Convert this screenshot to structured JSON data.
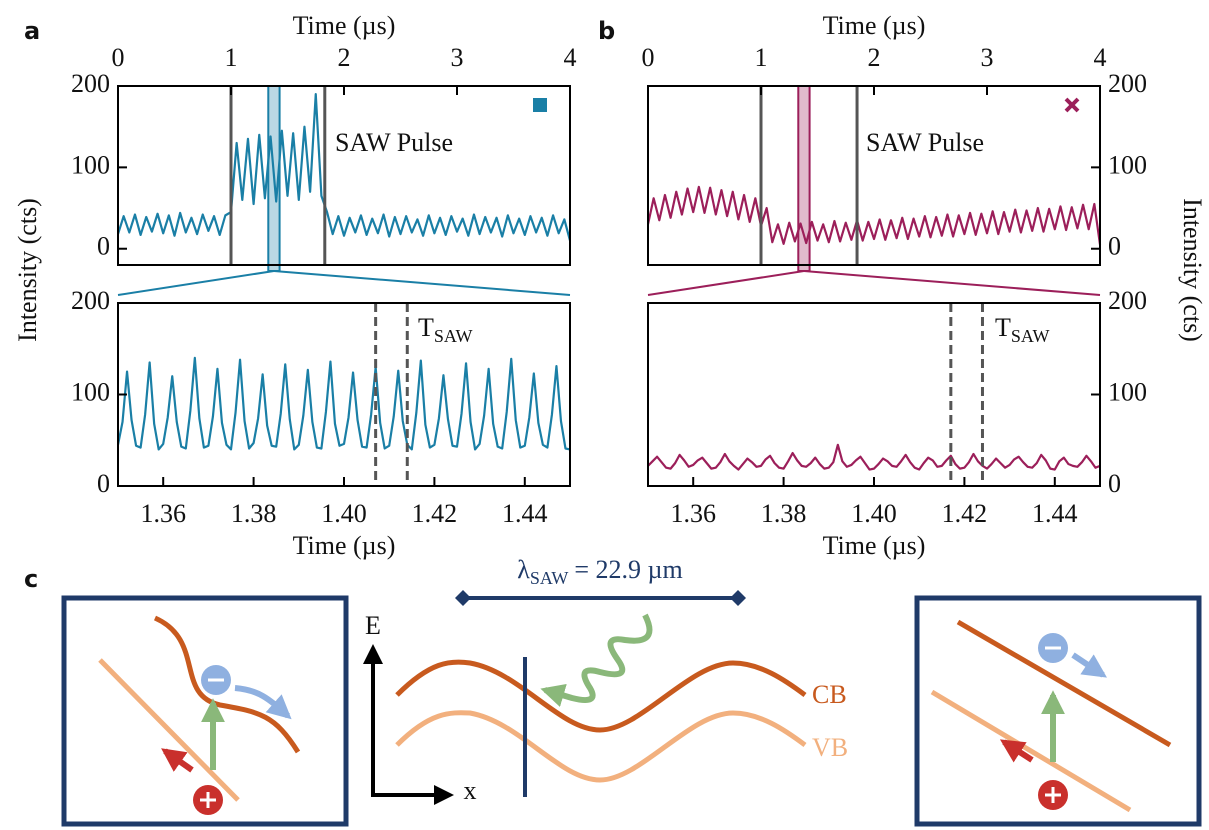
{
  "chart_data": [
    {
      "type": "line",
      "panel_label": "a",
      "xlabel": "Time (µs)",
      "ylabel": "Intensity (cts)",
      "xaxis": "top",
      "yaxis": "left",
      "x": [
        0,
        0.05,
        0.1,
        0.15,
        0.2,
        0.25,
        0.3,
        0.35,
        0.4,
        0.45,
        0.5,
        0.55,
        0.6,
        0.65,
        0.7,
        0.75,
        0.8,
        0.85,
        0.9,
        0.95,
        1,
        1.05,
        1.1,
        1.15,
        1.2,
        1.25,
        1.3,
        1.35,
        1.4,
        1.45,
        1.5,
        1.55,
        1.6,
        1.65,
        1.7,
        1.75,
        1.8,
        1.85,
        1.9,
        1.95,
        2,
        2.05,
        2.1,
        2.15,
        2.2,
        2.25,
        2.3,
        2.35,
        2.4,
        2.45,
        2.5,
        2.55,
        2.6,
        2.65,
        2.7,
        2.75,
        2.8,
        2.85,
        2.9,
        2.95,
        3,
        3.05,
        3.1,
        3.15,
        3.2,
        3.25,
        3.3,
        3.35,
        3.4,
        3.45,
        3.5,
        3.55,
        3.6,
        3.65,
        3.7,
        3.75,
        3.8,
        3.85,
        3.9,
        3.95,
        4
      ],
      "series": [
        {
          "color": "#1a7fa6",
          "values": [
            18,
            40,
            20,
            42,
            17,
            39,
            21,
            43,
            19,
            41,
            16,
            44,
            20,
            38,
            18,
            42,
            22,
            40,
            17,
            41,
            45,
            130,
            60,
            135,
            55,
            140,
            62,
            138,
            58,
            145,
            65,
            142,
            60,
            150,
            70,
            190,
            65,
            45,
            18,
            40,
            16,
            38,
            20,
            41,
            17,
            37,
            19,
            42,
            15,
            39,
            18,
            40,
            20,
            36,
            16,
            41,
            19,
            38,
            17,
            40,
            21,
            37,
            16,
            42,
            18,
            39,
            20,
            38,
            15,
            41,
            19,
            37,
            17,
            40,
            20,
            38,
            16,
            41,
            19,
            36,
            10
          ]
        }
      ],
      "xlim": [
        0,
        4
      ],
      "xticks": [
        0,
        1,
        2,
        3,
        4
      ],
      "ylim": [
        -20,
        200
      ],
      "yticks": [
        0,
        100,
        200
      ],
      "annotation": "SAW Pulse",
      "reference_lines": [
        1,
        1.83
      ],
      "highlight": [
        1.33,
        1.43
      ]
    },
    {
      "type": "line",
      "xlabel": "Time (µs)",
      "xaxis": "bottom",
      "yaxis": "left",
      "x": [
        1.35,
        1.351,
        1.352,
        1.353,
        1.354,
        1.355,
        1.356,
        1.357,
        1.358,
        1.359,
        1.36,
        1.361,
        1.362,
        1.363,
        1.364,
        1.365,
        1.366,
        1.367,
        1.368,
        1.369,
        1.37,
        1.371,
        1.372,
        1.373,
        1.374,
        1.375,
        1.376,
        1.377,
        1.378,
        1.379,
        1.38,
        1.381,
        1.382,
        1.383,
        1.384,
        1.385,
        1.386,
        1.387,
        1.388,
        1.389,
        1.39,
        1.391,
        1.392,
        1.393,
        1.394,
        1.395,
        1.396,
        1.397,
        1.398,
        1.399,
        1.4,
        1.401,
        1.402,
        1.403,
        1.404,
        1.405,
        1.406,
        1.407,
        1.408,
        1.409,
        1.41,
        1.411,
        1.412,
        1.413,
        1.414,
        1.415,
        1.416,
        1.417,
        1.418,
        1.419,
        1.42,
        1.421,
        1.422,
        1.423,
        1.424,
        1.425,
        1.426,
        1.427,
        1.428,
        1.429,
        1.43,
        1.431,
        1.432,
        1.433,
        1.434,
        1.435,
        1.436,
        1.437,
        1.438,
        1.439,
        1.44,
        1.441,
        1.442,
        1.443,
        1.444,
        1.445,
        1.446,
        1.447,
        1.448,
        1.449,
        1.45
      ],
      "series": [
        {
          "color": "#1a7fa6",
          "values": [
            45,
            70,
            125,
            72,
            44,
            42,
            78,
            135,
            68,
            40,
            46,
            75,
            120,
            70,
            43,
            41,
            82,
            140,
            74,
            42,
            44,
            76,
            128,
            69,
            45,
            40,
            80,
            138,
            71,
            41,
            47,
            74,
            122,
            66,
            44,
            43,
            79,
            133,
            73,
            40,
            45,
            77,
            127,
            70,
            42,
            41,
            81,
            136,
            68,
            44,
            46,
            75,
            124,
            72,
            43,
            42,
            78,
            130,
            69,
            41,
            44,
            76,
            126,
            71,
            45,
            40,
            80,
            137,
            67,
            42,
            45,
            74,
            121,
            73,
            44,
            43,
            79,
            134,
            70,
            40,
            46,
            77,
            128,
            68,
            43,
            41,
            81,
            139,
            72,
            42,
            44,
            75,
            123,
            69,
            45,
            42,
            78,
            131,
            71,
            41,
            40
          ]
        }
      ],
      "xlim": [
        1.35,
        1.45
      ],
      "xticks": [
        1.36,
        1.38,
        {
          "value": 1.4,
          "label": "1.40"
        },
        1.42,
        1.44
      ],
      "ylim": [
        0,
        200
      ],
      "yticks": [
        0,
        100,
        200
      ],
      "annotation": {
        "main": "T",
        "sub": "SAW"
      },
      "reference_lines": [
        1.407,
        1.414
      ]
    },
    {
      "type": "line",
      "panel_label": "b",
      "xlabel": "Time (µs)",
      "ylabel": "Intensity (cts)",
      "xaxis": "top",
      "yaxis": "right",
      "x": [
        0,
        0.05,
        0.1,
        0.15,
        0.2,
        0.25,
        0.3,
        0.35,
        0.4,
        0.45,
        0.5,
        0.55,
        0.6,
        0.65,
        0.7,
        0.75,
        0.8,
        0.85,
        0.9,
        0.95,
        1,
        1.05,
        1.1,
        1.15,
        1.2,
        1.25,
        1.3,
        1.35,
        1.4,
        1.45,
        1.5,
        1.55,
        1.6,
        1.65,
        1.7,
        1.75,
        1.8,
        1.85,
        1.9,
        1.95,
        2,
        2.05,
        2.1,
        2.15,
        2.2,
        2.25,
        2.3,
        2.35,
        2.4,
        2.45,
        2.5,
        2.55,
        2.6,
        2.65,
        2.7,
        2.75,
        2.8,
        2.85,
        2.9,
        2.95,
        3,
        3.05,
        3.1,
        3.15,
        3.2,
        3.25,
        3.3,
        3.35,
        3.4,
        3.45,
        3.5,
        3.55,
        3.6,
        3.65,
        3.7,
        3.75,
        3.8,
        3.85,
        3.9,
        3.95,
        4
      ],
      "series": [
        {
          "color": "#9c1f5a",
          "values": [
            30,
            62,
            35,
            66,
            38,
            70,
            42,
            74,
            45,
            76,
            44,
            75,
            42,
            72,
            40,
            70,
            36,
            66,
            33,
            62,
            28,
            50,
            8,
            30,
            6,
            32,
            9,
            31,
            7,
            33,
            10,
            30,
            8,
            34,
            9,
            32,
            11,
            35,
            10,
            33,
            12,
            36,
            11,
            35,
            13,
            38,
            12,
            37,
            15,
            40,
            14,
            39,
            16,
            42,
            15,
            41,
            18,
            44,
            17,
            43,
            19,
            46,
            18,
            45,
            21,
            48,
            20,
            47,
            22,
            50,
            21,
            49,
            24,
            52,
            23,
            51,
            25,
            54,
            24,
            55,
            5
          ]
        }
      ],
      "xlim": [
        0,
        4
      ],
      "xticks": [
        0,
        1,
        2,
        3,
        4
      ],
      "ylim": [
        -20,
        200
      ],
      "yticks": [
        0,
        100,
        200
      ],
      "annotation": "SAW Pulse",
      "reference_lines": [
        1,
        1.85
      ],
      "highlight": [
        1.33,
        1.43
      ]
    },
    {
      "type": "line",
      "xlabel": "Time (µs)",
      "xaxis": "bottom",
      "yaxis": "right",
      "x": [
        1.35,
        1.351,
        1.352,
        1.353,
        1.354,
        1.355,
        1.356,
        1.357,
        1.358,
        1.359,
        1.36,
        1.361,
        1.362,
        1.363,
        1.364,
        1.365,
        1.366,
        1.367,
        1.368,
        1.369,
        1.37,
        1.371,
        1.372,
        1.373,
        1.374,
        1.375,
        1.376,
        1.377,
        1.378,
        1.379,
        1.38,
        1.381,
        1.382,
        1.383,
        1.384,
        1.385,
        1.386,
        1.387,
        1.388,
        1.389,
        1.39,
        1.391,
        1.392,
        1.393,
        1.394,
        1.395,
        1.396,
        1.397,
        1.398,
        1.399,
        1.4,
        1.401,
        1.402,
        1.403,
        1.404,
        1.405,
        1.406,
        1.407,
        1.408,
        1.409,
        1.41,
        1.411,
        1.412,
        1.413,
        1.414,
        1.415,
        1.416,
        1.417,
        1.418,
        1.419,
        1.42,
        1.421,
        1.422,
        1.423,
        1.424,
        1.425,
        1.426,
        1.427,
        1.428,
        1.429,
        1.43,
        1.431,
        1.432,
        1.433,
        1.434,
        1.435,
        1.436,
        1.437,
        1.438,
        1.439,
        1.44,
        1.441,
        1.442,
        1.443,
        1.444,
        1.445,
        1.446,
        1.447,
        1.448,
        1.449,
        1.45
      ],
      "series": [
        {
          "color": "#9c1f5a",
          "values": [
            22,
            27,
            32,
            26,
            20,
            19,
            25,
            34,
            28,
            21,
            23,
            28,
            31,
            25,
            19,
            20,
            26,
            35,
            27,
            22,
            18,
            24,
            30,
            26,
            21,
            22,
            29,
            33,
            25,
            20,
            19,
            27,
            36,
            28,
            22,
            21,
            25,
            31,
            24,
            19,
            20,
            26,
            45,
            27,
            21,
            23,
            28,
            32,
            25,
            18,
            19,
            24,
            30,
            27,
            22,
            21,
            27,
            34,
            26,
            20,
            18,
            25,
            31,
            28,
            21,
            22,
            28,
            33,
            24,
            19,
            20,
            26,
            35,
            27,
            22,
            19,
            24,
            30,
            25,
            20,
            23,
            29,
            32,
            26,
            21,
            20,
            25,
            34,
            28,
            19,
            18,
            27,
            31,
            24,
            22,
            21,
            26,
            33,
            27,
            20,
            22
          ]
        }
      ],
      "xlim": [
        1.35,
        1.45
      ],
      "xticks": [
        1.36,
        1.38,
        {
          "value": 1.4,
          "label": "1.40"
        },
        1.42,
        1.44
      ],
      "ylim": [
        0,
        200
      ],
      "yticks": [
        0,
        100,
        200
      ],
      "annotation": {
        "main": "T",
        "sub": "SAW"
      },
      "reference_lines": [
        1.417,
        1.424
      ]
    }
  ],
  "diagram": {
    "panel_label": "c",
    "wavelength": {
      "symbol": "λ",
      "sub": "SAW",
      "value": "= 22.9 µm"
    },
    "energy_axis": "E",
    "position_axis": "x",
    "conduction_band": "CB",
    "valence_band": "VB"
  }
}
